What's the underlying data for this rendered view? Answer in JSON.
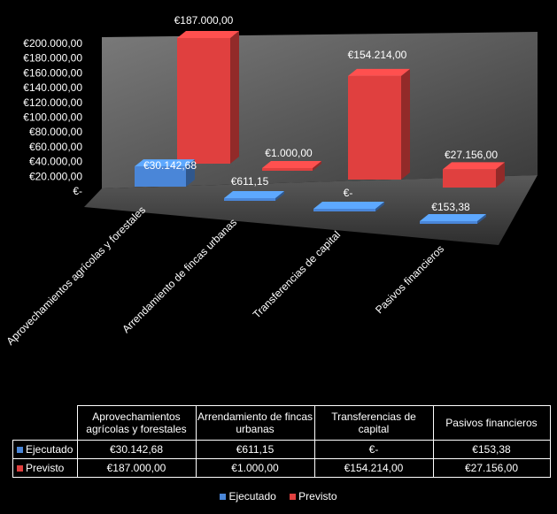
{
  "chart_data": {
    "type": "bar",
    "subtype": "3d-clustered-column",
    "categories": [
      "Aprovechamientos agrícolas y forestales",
      "Arrendamiento de fincas urbanas",
      "Transferencias de capital",
      "Pasivos financieros"
    ],
    "table_categories": [
      "Aprovechamientos agrícolas y forestales",
      "Arrendamiento de fincas urbanas",
      "Transferencias de capital",
      "Pasivos financieros"
    ],
    "series": [
      {
        "name": "Ejecutado",
        "values": [
          30142.68,
          611.15,
          0,
          153.38
        ],
        "labels": [
          "€30.142,68",
          "€611,15",
          "€-",
          "€153,38"
        ],
        "color": "#4a86d8"
      },
      {
        "name": "Previsto",
        "values": [
          187000.0,
          1000.0,
          154214.0,
          27156.0
        ],
        "labels": [
          "€187.000,00",
          "€1.000,00",
          "€154.214,00",
          "€27.156,00"
        ],
        "color": "#e0403f"
      }
    ],
    "y_ticks": [
      "€200.000,00",
      "€180.000,00",
      "€160.000,00",
      "€140.000,00",
      "€120.000,00",
      "€100.000,00",
      "€80.000,00",
      "€60.000,00",
      "€40.000,00",
      "€20.000,00",
      "€-"
    ],
    "ylim": [
      0,
      200000
    ],
    "grid": false,
    "legend_position": "bottom",
    "data_table": true
  }
}
